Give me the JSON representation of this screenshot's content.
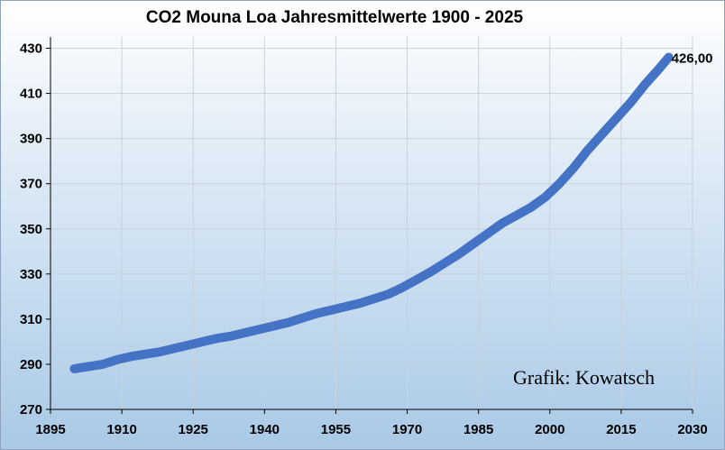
{
  "chart_data": {
    "type": "line",
    "title": "CO2 Mouna Loa Jahresmittelwerte 1900 - 2025",
    "xlabel": "",
    "ylabel": "",
    "xlim": [
      1895,
      2030
    ],
    "ylim": [
      270,
      435
    ],
    "x_ticks": [
      1895,
      1910,
      1925,
      1940,
      1955,
      1970,
      1985,
      2000,
      2015,
      2030
    ],
    "y_ticks": [
      270,
      290,
      310,
      330,
      350,
      370,
      390,
      410,
      430
    ],
    "grid": true,
    "series": [
      {
        "color": "#4472c4",
        "x": [
          1900,
          1903,
          1906,
          1909,
          1912,
          1915,
          1918,
          1921,
          1924,
          1927,
          1930,
          1933,
          1936,
          1939,
          1942,
          1945,
          1948,
          1951,
          1954,
          1957,
          1960,
          1963,
          1966,
          1969,
          1972,
          1975,
          1978,
          1981,
          1984,
          1987,
          1990,
          1993,
          1996,
          1999,
          2002,
          2005,
          2008,
          2011,
          2014,
          2017,
          2020,
          2023,
          2025
        ],
        "y": [
          288,
          289,
          290,
          292,
          293.5,
          294.5,
          295.5,
          297,
          298.5,
          300,
          301.5,
          302.5,
          304,
          305.5,
          307,
          308.5,
          310.5,
          312.5,
          314,
          315.5,
          317,
          319,
          321,
          324,
          327.5,
          331,
          335,
          339,
          343.5,
          348,
          352.5,
          356,
          359.5,
          364,
          370,
          377,
          385,
          392,
          399,
          406,
          414,
          421,
          426
        ]
      }
    ],
    "annotations": [
      {
        "text": "426,00",
        "x": 2025,
        "y": 426
      }
    ]
  },
  "credit": "Grafik: Kowatsch"
}
